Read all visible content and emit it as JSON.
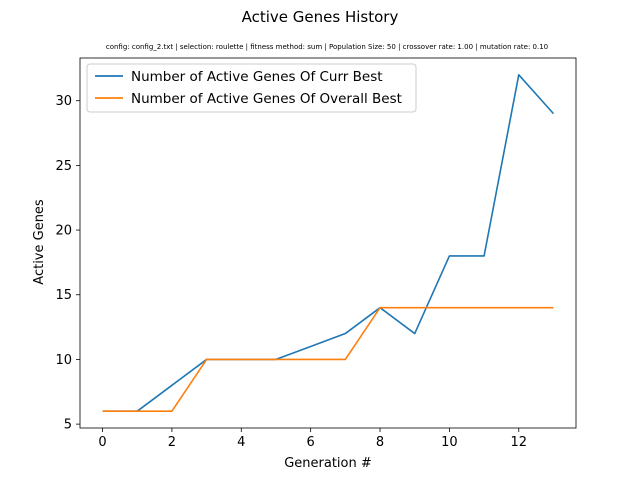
{
  "chart_data": {
    "type": "line",
    "title": "Active Genes History",
    "subtitle": "config: config_2.txt | selection: roulette | fitness method: sum | Population Size: 50 | crossover rate: 1.00 | mutation rate: 0.10",
    "xlabel": "Generation #",
    "ylabel": "Active Genes",
    "x": [
      0,
      1,
      2,
      3,
      4,
      5,
      6,
      7,
      8,
      9,
      10,
      11,
      12,
      13
    ],
    "xlim": [
      -0.65,
      13.65
    ],
    "ylim": [
      4.7,
      33.3
    ],
    "xticks": [
      0,
      2,
      4,
      6,
      8,
      10,
      12
    ],
    "yticks": [
      5,
      10,
      15,
      20,
      25,
      30
    ],
    "legend_position": "upper-left",
    "grid": false,
    "series": [
      {
        "name": "Number of Active Genes Of Curr Best",
        "color": "#1f77b4",
        "values": [
          6,
          6,
          8,
          10,
          10,
          10,
          11,
          12,
          14,
          12,
          18,
          18,
          32,
          29
        ]
      },
      {
        "name": "Number of Active Genes Of Overall Best",
        "color": "#ff7f0e",
        "values": [
          6,
          6,
          6,
          10,
          10,
          10,
          10,
          10,
          14,
          14,
          14,
          14,
          14,
          14
        ]
      }
    ]
  }
}
